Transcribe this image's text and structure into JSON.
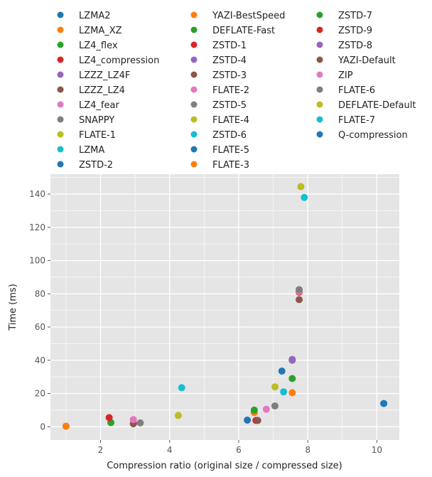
{
  "chart_data": {
    "type": "scatter",
    "xlabel": "Compression ratio (original size / compressed size)",
    "ylabel": "Time (ms)",
    "xlim": [
      0.55,
      10.65
    ],
    "ylim": [
      -8,
      152
    ],
    "xticks": [
      2,
      4,
      6,
      8,
      10
    ],
    "yticks": [
      0,
      20,
      40,
      60,
      80,
      100,
      120,
      140
    ],
    "grid": true,
    "legend_position": "top",
    "series": [
      {
        "name": "LZMA2",
        "color": "#1f77b4",
        "x": 1.0,
        "y": 0.3
      },
      {
        "name": "LZMA_XZ",
        "color": "#ff7f0e",
        "x": 1.0,
        "y": 0.3
      },
      {
        "name": "LZ4_flex",
        "color": "#2ca02c",
        "x": 2.3,
        "y": 2.5
      },
      {
        "name": "LZ4_compression",
        "color": "#d62728",
        "x": 2.25,
        "y": 5.5
      },
      {
        "name": "LZZZ_LZ4F",
        "color": "#9467bd",
        "x": 2.95,
        "y": 2.0
      },
      {
        "name": "LZZZ_LZ4",
        "color": "#8c564b",
        "x": 2.95,
        "y": 1.8
      },
      {
        "name": "LZ4_fear",
        "color": "#e377c2",
        "x": 2.95,
        "y": 4.3
      },
      {
        "name": "SNAPPY",
        "color": "#7f7f7f",
        "x": 3.15,
        "y": 2.3
      },
      {
        "name": "FLATE-1",
        "color": "#bcbd22",
        "x": 4.25,
        "y": 6.8
      },
      {
        "name": "LZMA",
        "color": "#17becf",
        "x": 4.35,
        "y": 23.5
      },
      {
        "name": "ZSTD-2",
        "color": "#1f77b4",
        "x": 7.25,
        "y": 33.5
      },
      {
        "name": "YAZI-BestSpeed",
        "color": "#ff7f0e",
        "x": 7.55,
        "y": 20.5
      },
      {
        "name": "DEFLATE-Fast",
        "color": "#2ca02c",
        "x": 7.55,
        "y": 29.0
      },
      {
        "name": "ZSTD-1",
        "color": "#d62728",
        "x": 6.5,
        "y": 3.8
      },
      {
        "name": "ZSTD-4",
        "color": "#9467bd",
        "x": 7.55,
        "y": 40.5
      },
      {
        "name": "ZSTD-3",
        "color": "#8c564b",
        "x": 6.55,
        "y": 3.8
      },
      {
        "name": "FLATE-2",
        "color": "#e377c2",
        "x": 6.8,
        "y": 10.5
      },
      {
        "name": "ZSTD-5",
        "color": "#7f7f7f",
        "x": 7.05,
        "y": 12.5
      },
      {
        "name": "FLATE-4",
        "color": "#bcbd22",
        "x": 7.05,
        "y": 24.0
      },
      {
        "name": "ZSTD-6",
        "color": "#17becf",
        "x": 7.3,
        "y": 21.0
      },
      {
        "name": "FLATE-5",
        "color": "#1f77b4",
        "x": 6.25,
        "y": 4.0
      },
      {
        "name": "FLATE-3",
        "color": "#ff7f0e",
        "x": 6.45,
        "y": 8.5
      },
      {
        "name": "ZSTD-7",
        "color": "#2ca02c",
        "x": 6.45,
        "y": 10.0
      },
      {
        "name": "ZSTD-9",
        "color": "#d62728",
        "x": 7.75,
        "y": 81.0
      },
      {
        "name": "ZSTD-8",
        "color": "#9467bd",
        "x": 7.55,
        "y": 40.0
      },
      {
        "name": "YAZI-Default",
        "color": "#8c564b",
        "x": 7.75,
        "y": 76.5
      },
      {
        "name": "ZIP",
        "color": "#e377c2",
        "x": 7.75,
        "y": 81.5
      },
      {
        "name": "FLATE-6",
        "color": "#7f7f7f",
        "x": 7.75,
        "y": 82.5
      },
      {
        "name": "DEFLATE-Default",
        "color": "#bcbd22",
        "x": 7.8,
        "y": 144.5
      },
      {
        "name": "FLATE-7",
        "color": "#17becf",
        "x": 7.9,
        "y": 138.0
      },
      {
        "name": "Q-compression",
        "color": "#1f77b4",
        "x": 10.2,
        "y": 14.0
      }
    ]
  }
}
